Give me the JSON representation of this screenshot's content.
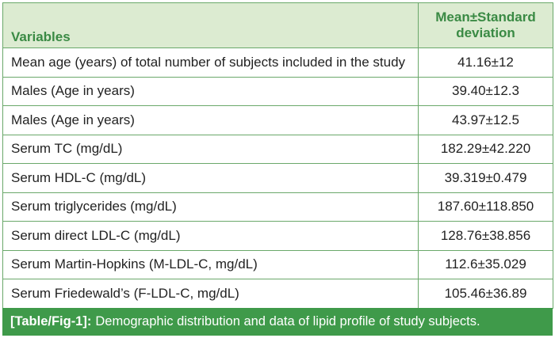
{
  "table": {
    "header": {
      "variables": "Variables",
      "stat_line1": "Mean±Standard",
      "stat_line2": "deviation"
    },
    "rows": [
      {
        "variable": "Mean age (years) of total number of subjects included in the study",
        "value": "41.16±12"
      },
      {
        "variable": "Males (Age in years)",
        "value": "39.40±12.3"
      },
      {
        "variable": "Males (Age in years)",
        "value": "43.97±12.5"
      },
      {
        "variable": "Serum TC (mg/dL)",
        "value": "182.29±42.220"
      },
      {
        "variable": "Serum HDL-C (mg/dL)",
        "value": "39.319±0.479"
      },
      {
        "variable": "Serum triglycerides (mg/dL)",
        "value": "187.60±118.850"
      },
      {
        "variable": "Serum direct LDL-C (mg/dL)",
        "value": "128.76±38.856"
      },
      {
        "variable": "Serum Martin-Hopkins (M-LDL-C, mg/dL)",
        "value": "112.6±35.029"
      },
      {
        "variable": "Serum Friedewald’s (F-LDL-C, mg/dL)",
        "value": "105.46±36.89"
      }
    ]
  },
  "caption": {
    "label": "[Table/Fig-1]:",
    "text": "Demographic distribution and data of lipid profile of study subjects."
  },
  "colors": {
    "header_bg": "#dcebd1",
    "header_text": "#3a8a44",
    "border": "#6aa86a",
    "caption_bg": "#3f9a4a"
  }
}
